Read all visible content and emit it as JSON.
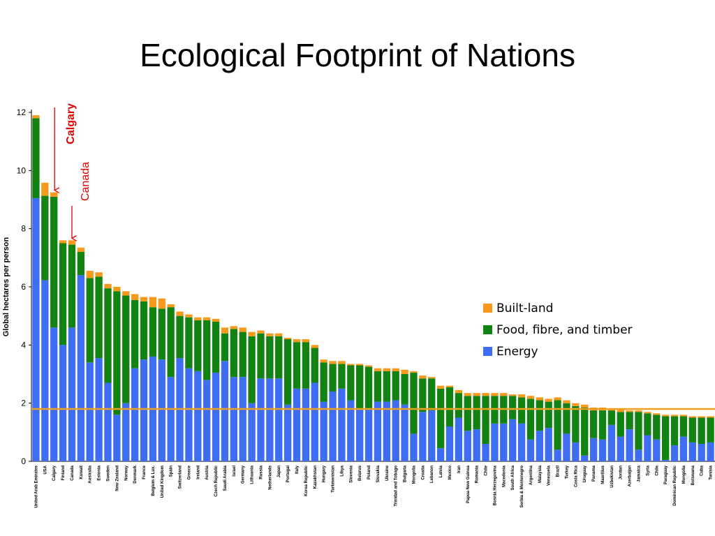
{
  "slide": {
    "title": "Ecological Footprint of Nations"
  },
  "chart_data": {
    "type": "bar",
    "stacked": true,
    "title": "Ecological Footprint of Nations",
    "xlabel": "",
    "ylabel": "Global hectares per person",
    "ylim": [
      0,
      12
    ],
    "yticks": [
      0,
      2,
      4,
      6,
      8,
      10,
      12
    ],
    "grid": false,
    "legend_position": "right-middle",
    "reference_line": {
      "y": 1.8,
      "color": "#f0a020"
    },
    "colors": {
      "Built-land": "#f7991c",
      "Food, fibre, and timber": "#128312",
      "Energy": "#3f6df2"
    },
    "categories": [
      "United Arab Emirates",
      "USA",
      "Calgary",
      "Finland",
      "Canada",
      "Kuwait",
      "Australia",
      "Estonia",
      "Sweden",
      "New Zealand",
      "Norway",
      "Denmark",
      "France",
      "Belgium & Lux.",
      "United Kingdom",
      "Spain",
      "Switzerland",
      "Greece",
      "Ireland",
      "Austria",
      "Czech Republic",
      "Saudi Arabia",
      "Israel",
      "Germany",
      "Lithuania",
      "Russia",
      "Netherlands",
      "Japan",
      "Portugal",
      "Italy",
      "Korea Republic",
      "Kazakhstan",
      "Hungary",
      "Turkmenistan",
      "Libya",
      "Slovenia",
      "Belarus",
      "Poland",
      "Slovakia",
      "Ukraine",
      "Trinidad and Tobago",
      "Bulgaria",
      "Mongolia",
      "Croatia",
      "Lebanon",
      "Latvia",
      "Mexico",
      "Iran",
      "Papua New Guinea",
      "Romania",
      "Chile",
      "Bosnia Herzegovina",
      "Macedonia",
      "South Africa",
      "Serbia & Montenegro",
      "Argentina",
      "Malaysia",
      "Venezuela",
      "Brazil",
      "Turkey",
      "Costa Rica",
      "Uruguay",
      "Panama",
      "Mauritius",
      "Uzbekistan",
      "Jordan",
      "Azerbaijan",
      "Jamaica",
      "Syria",
      "Chile",
      "Paraguay",
      "Dominican Republic",
      "Mongolia",
      "Botswana",
      "Cuba",
      "Tunisia"
    ],
    "series": [
      {
        "name": "Energy",
        "values": [
          9.05,
          6.23,
          4.6,
          4.0,
          4.6,
          6.4,
          3.4,
          3.55,
          2.7,
          1.6,
          2.0,
          3.2,
          3.5,
          3.6,
          3.5,
          2.9,
          3.55,
          3.2,
          3.1,
          2.8,
          3.05,
          3.45,
          2.9,
          2.9,
          2.0,
          2.85,
          2.85,
          2.85,
          1.95,
          2.5,
          2.5,
          2.7,
          2.05,
          2.4,
          2.5,
          2.1,
          1.8,
          1.8,
          2.05,
          2.05,
          2.1,
          1.95,
          0.95,
          1.7,
          1.75,
          0.45,
          1.2,
          1.5,
          1.05,
          1.1,
          0.6,
          1.3,
          1.3,
          1.45,
          1.3,
          0.75,
          1.05,
          1.15,
          0.4,
          0.95,
          0.65,
          0.2,
          0.8,
          0.75,
          1.25,
          0.85,
          1.1,
          0.4,
          0.9,
          0.75,
          0.05,
          0.55,
          0.85,
          0.65,
          0.6,
          0.65
        ]
      },
      {
        "name": "Food, fibre, and timber",
        "values": [
          2.75,
          2.9,
          4.5,
          3.5,
          2.85,
          0.8,
          2.9,
          2.8,
          3.25,
          4.25,
          3.7,
          2.35,
          2.0,
          1.7,
          1.75,
          2.4,
          1.45,
          1.75,
          1.75,
          2.05,
          1.75,
          0.95,
          1.65,
          1.55,
          2.3,
          1.55,
          1.45,
          1.45,
          2.25,
          1.6,
          1.6,
          1.2,
          1.35,
          0.95,
          0.85,
          1.2,
          1.5,
          1.45,
          1.05,
          1.05,
          1.0,
          1.05,
          2.1,
          1.15,
          1.1,
          2.05,
          1.35,
          0.85,
          1.2,
          1.15,
          1.65,
          0.95,
          0.95,
          0.8,
          0.9,
          1.4,
          1.05,
          0.9,
          1.7,
          1.05,
          1.25,
          1.65,
          0.95,
          1.0,
          0.5,
          0.85,
          0.6,
          1.3,
          0.75,
          0.85,
          1.5,
          1.0,
          0.7,
          0.85,
          0.9,
          0.85
        ]
      },
      {
        "name": "Built-land",
        "values": [
          0.1,
          0.45,
          0.15,
          0.1,
          0.15,
          0.15,
          0.25,
          0.15,
          0.15,
          0.15,
          0.15,
          0.2,
          0.15,
          0.35,
          0.35,
          0.1,
          0.15,
          0.1,
          0.1,
          0.1,
          0.1,
          0.2,
          0.1,
          0.15,
          0.15,
          0.1,
          0.1,
          0.1,
          0.05,
          0.1,
          0.1,
          0.1,
          0.1,
          0.1,
          0.1,
          0.05,
          0.05,
          0.05,
          0.1,
          0.1,
          0.1,
          0.15,
          0.05,
          0.1,
          0.05,
          0.1,
          0.05,
          0.1,
          0.1,
          0.1,
          0.1,
          0.1,
          0.1,
          0.05,
          0.1,
          0.1,
          0.1,
          0.1,
          0.1,
          0.1,
          0.1,
          0.1,
          0.1,
          0.1,
          0.05,
          0.1,
          0.05,
          0.05,
          0.05,
          0.05,
          0.05,
          0.05,
          0.05,
          0.05,
          0.05,
          0.05
        ]
      }
    ],
    "annotations": [
      {
        "text": "Calgary",
        "category": "Calgary"
      },
      {
        "text": "Canada",
        "category": "Canada"
      }
    ]
  }
}
